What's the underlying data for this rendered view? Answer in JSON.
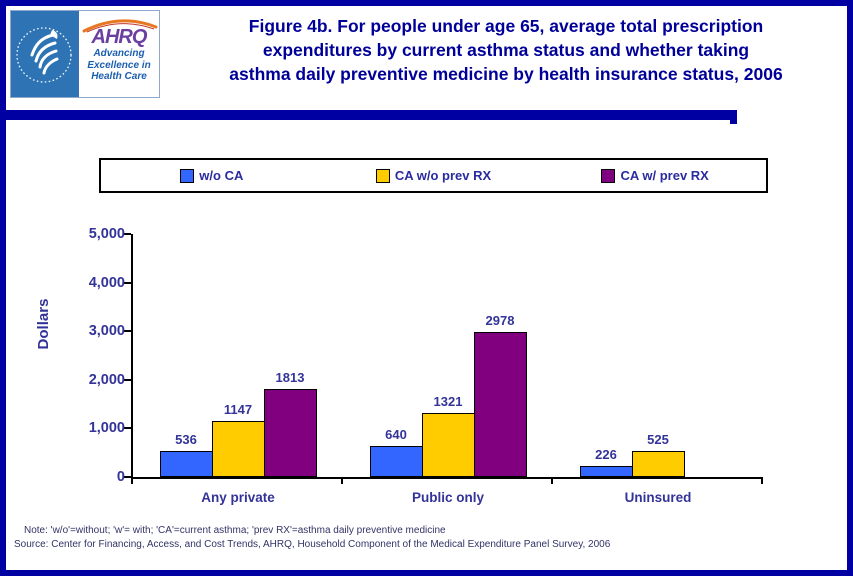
{
  "header": {
    "logo": {
      "agency": "AHRQ",
      "tagline_lines": [
        "Advancing",
        "Excellence in",
        "Health Care"
      ]
    },
    "title_lines": [
      "Figure 4b. For people under age 65, average total prescription",
      "expenditures by current asthma status and whether taking",
      "asthma daily preventive medicine by health insurance status, 2006"
    ]
  },
  "legend": {
    "items": [
      {
        "label": "w/o CA",
        "color": "#3366FF"
      },
      {
        "label": "CA w/o prev RX",
        "color": "#FFCC00"
      },
      {
        "label": "CA w/ prev RX",
        "color": "#800080"
      }
    ]
  },
  "chart_data": {
    "type": "bar",
    "categories": [
      "Any private",
      "Public only",
      "Uninsured"
    ],
    "series": [
      {
        "name": "w/o CA",
        "color": "#3366FF",
        "values": [
          536,
          640,
          226
        ]
      },
      {
        "name": "CA w/o prev RX",
        "color": "#FFCC00",
        "values": [
          1147,
          1321,
          525
        ]
      },
      {
        "name": "CA w/ prev RX",
        "color": "#800080",
        "values": [
          1813,
          2978,
          null
        ]
      }
    ],
    "ylabel": "Dollars",
    "ylim": [
      0,
      5000
    ],
    "ytick_step": 1000,
    "yticks": [
      "0",
      "1,000",
      "2,000",
      "3,000",
      "4,000",
      "5,000"
    ],
    "legend_position": "top",
    "grid": false,
    "bar_value_labels": true
  },
  "footer": {
    "note": "Note: 'w/o'=without; 'w'= with; 'CA'=current asthma; 'prev RX'=asthma daily preventive medicine",
    "source": "Source: Center for Financing, Access, and Cost Trends, AHRQ, Household Component of the Medical Expenditure Panel Survey, 2006"
  }
}
